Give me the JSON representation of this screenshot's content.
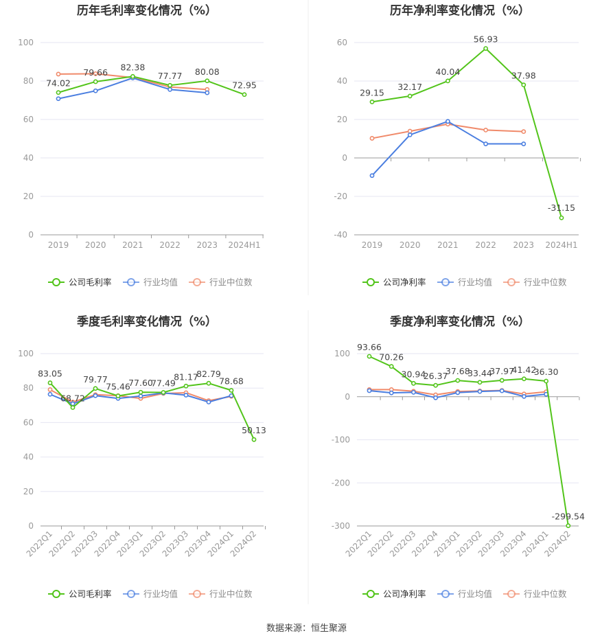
{
  "source": "数据来源：恒生聚源",
  "colors": {
    "company": "#52c41a",
    "industry_avg": "#4a7ee0",
    "industry_median": "#f08a6a",
    "grid": "#e6e6f2",
    "axis": "#999999",
    "tick_text": "#999999",
    "label_text": "#444444",
    "title_text": "#333333"
  },
  "chart_data": [
    {
      "type": "line",
      "title": "历年毛利率变化情况（%）",
      "categories": [
        "2019",
        "2020",
        "2021",
        "2022",
        "2023",
        "2024H1"
      ],
      "ylim": [
        0,
        100
      ],
      "yticks": [
        0,
        20,
        40,
        60,
        80,
        100
      ],
      "grid": true,
      "legend_position": "bottom-center",
      "series": [
        {
          "name": "公司毛利率",
          "values": [
            74.02,
            79.66,
            82.38,
            77.77,
            80.08,
            72.95
          ],
          "labels": [
            "74.02",
            "79.66",
            "82.38",
            "77.77",
            "80.08",
            "72.95"
          ]
        },
        {
          "name": "行业均值",
          "values": [
            70.8,
            74.9,
            81.6,
            75.6,
            73.9,
            null
          ]
        },
        {
          "name": "行业中位数",
          "values": [
            83.6,
            83.8,
            81.8,
            76.9,
            75.6,
            null
          ]
        }
      ]
    },
    {
      "type": "line",
      "title": "历年净利率变化情况（%）",
      "categories": [
        "2019",
        "2020",
        "2021",
        "2022",
        "2023",
        "2024H1"
      ],
      "ylim": [
        -40,
        60
      ],
      "yticks": [
        -40,
        -20,
        0,
        20,
        40,
        60
      ],
      "grid": true,
      "legend_position": "bottom-center",
      "series": [
        {
          "name": "公司净利率",
          "values": [
            29.15,
            32.17,
            40.04,
            56.93,
            37.98,
            -31.15
          ],
          "labels": [
            "29.15",
            "32.17",
            "40.04",
            "56.93",
            "37.98",
            "-31.15"
          ]
        },
        {
          "name": "行业均值",
          "values": [
            -9.2,
            12.0,
            19.0,
            7.3,
            7.3,
            null
          ]
        },
        {
          "name": "行业中位数",
          "values": [
            10.2,
            13.9,
            17.6,
            14.5,
            13.7,
            null
          ]
        }
      ]
    },
    {
      "type": "line",
      "title": "季度毛利率变化情况（%）",
      "categories": [
        "2022Q1",
        "2022Q2",
        "2022Q3",
        "2022Q4",
        "2023Q1",
        "2023Q2",
        "2023Q3",
        "2023Q4",
        "2024Q1",
        "2024Q2"
      ],
      "ylim": [
        0,
        100
      ],
      "yticks": [
        0,
        20,
        40,
        60,
        80,
        100
      ],
      "grid": true,
      "legend_position": "bottom-center",
      "series": [
        {
          "name": "公司毛利率",
          "values": [
            83.05,
            68.72,
            79.77,
            75.46,
            77.6,
            77.49,
            81.17,
            82.79,
            78.68,
            50.13
          ],
          "labels": [
            "83.05",
            "68.72",
            "79.77",
            "75.46",
            "77.60",
            "77.49",
            "81.17",
            "82.79",
            "78.68",
            "50.13"
          ]
        },
        {
          "name": "行业均值",
          "values": [
            76.4,
            70.9,
            75.6,
            74.0,
            75.4,
            77.2,
            75.9,
            71.9,
            75.6,
            null
          ]
        },
        {
          "name": "行业中位数",
          "values": [
            79.1,
            71.9,
            76.2,
            75.6,
            74.0,
            76.9,
            77.3,
            72.7,
            75.2,
            null
          ]
        }
      ]
    },
    {
      "type": "line",
      "title": "季度净利率变化情况（%）",
      "categories": [
        "2022Q1",
        "2022Q2",
        "2022Q3",
        "2022Q4",
        "2023Q1",
        "2023Q2",
        "2023Q3",
        "2023Q4",
        "2024Q1",
        "2024Q2"
      ],
      "ylim": [
        -300,
        100
      ],
      "yticks": [
        -300,
        -200,
        -100,
        0,
        100
      ],
      "grid": true,
      "legend_position": "bottom-center",
      "series": [
        {
          "name": "公司净利率",
          "values": [
            93.66,
            70.26,
            30.94,
            26.37,
            37.68,
            33.44,
            37.97,
            41.42,
            36.3,
            -299.54
          ],
          "labels": [
            "93.66",
            "70.26",
            "30.94",
            "26.37",
            "37.68",
            "33.44",
            "37.97",
            "41.42",
            "36.30",
            "-299.54"
          ]
        },
        {
          "name": "行业均值",
          "values": [
            14.0,
            8.9,
            10.2,
            -2.5,
            9.5,
            12.1,
            13.7,
            0.6,
            5.7,
            null
          ]
        },
        {
          "name": "行业中位数",
          "values": [
            16.5,
            16.5,
            12.7,
            4.4,
            12.1,
            13.3,
            14.6,
            6.3,
            11.4,
            null
          ]
        }
      ]
    }
  ]
}
